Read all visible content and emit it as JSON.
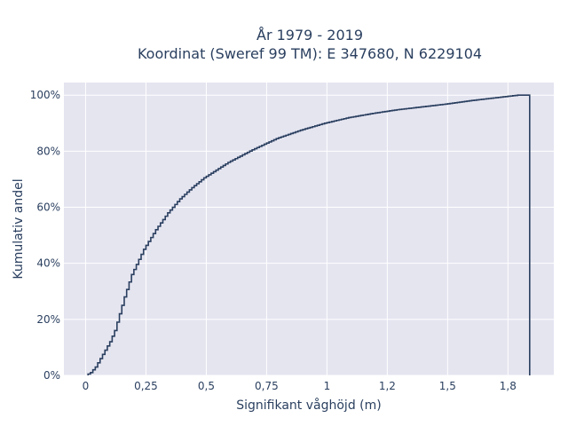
{
  "chart_data": {
    "type": "line",
    "subtype": "cumulative-step",
    "title_line1": "År 1979 - 2019",
    "title_line2": "Koordinat (Sweref 99 TM): E 347680, N 6229104",
    "xlabel": "Signifikant våghöjd (m)",
    "ylabel": "Kumulativ andel",
    "xlim": [
      -0.09,
      1.94
    ],
    "ylim": [
      0,
      1.045
    ],
    "x_ticks": [
      0,
      0.25,
      0.5,
      0.75,
      1,
      1.25,
      1.5,
      1.75
    ],
    "x_tick_labels": [
      "0",
      "0,25",
      "0,5",
      "0,75",
      "1",
      "1,2",
      "1,5",
      "1,8"
    ],
    "y_ticks": [
      0,
      0.2,
      0.4,
      0.6,
      0.8,
      1.0
    ],
    "y_tick_labels": [
      "0%",
      "20%",
      "40%",
      "60%",
      "80%",
      "100%"
    ],
    "grid": true,
    "background": "#e5e5f0",
    "line_color": "#2a3f5f",
    "x": [
      0.01,
      0.03,
      0.05,
      0.07,
      0.09,
      0.11,
      0.13,
      0.15,
      0.17,
      0.2,
      0.25,
      0.3,
      0.35,
      0.4,
      0.45,
      0.5,
      0.6,
      0.7,
      0.8,
      0.9,
      1.0,
      1.1,
      1.2,
      1.3,
      1.4,
      1.5,
      1.6,
      1.7,
      1.8,
      1.84,
      1.84
    ],
    "y": [
      0.0,
      0.01,
      0.03,
      0.06,
      0.09,
      0.12,
      0.16,
      0.22,
      0.28,
      0.36,
      0.45,
      0.52,
      0.58,
      0.63,
      0.67,
      0.705,
      0.76,
      0.805,
      0.845,
      0.875,
      0.9,
      0.92,
      0.935,
      0.948,
      0.958,
      0.968,
      0.98,
      0.99,
      1.0,
      1.0,
      0.0
    ]
  }
}
